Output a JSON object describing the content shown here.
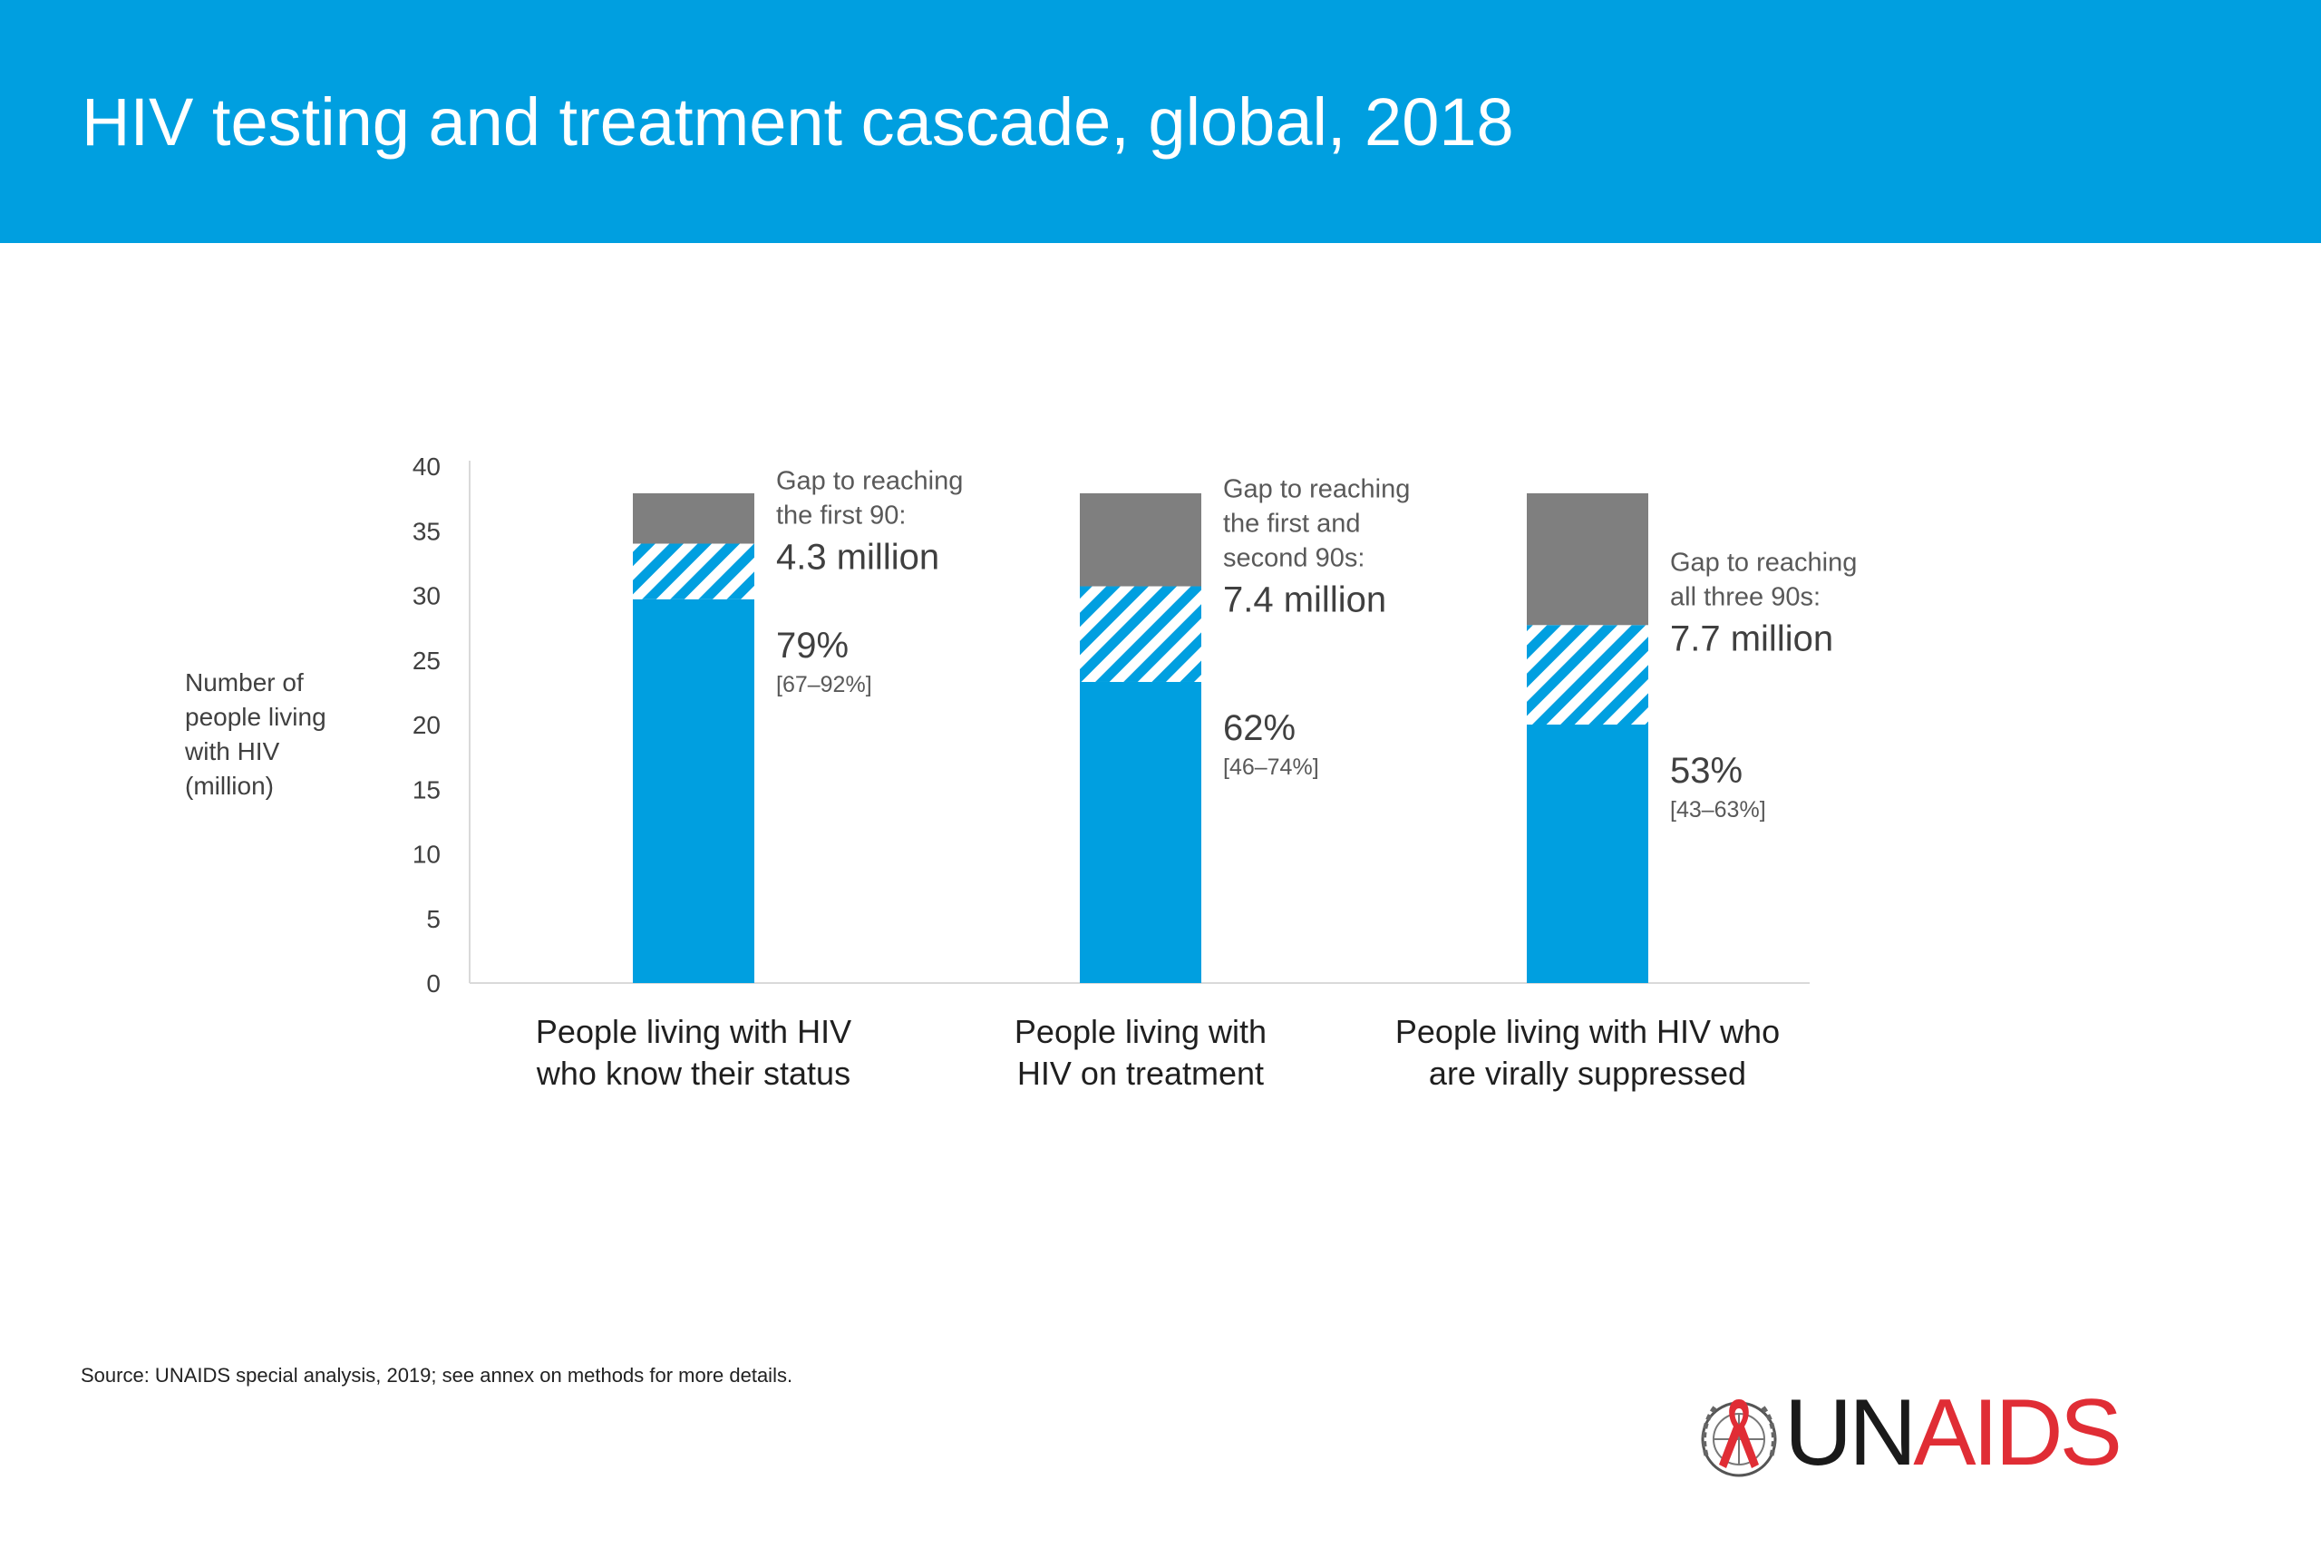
{
  "header": {
    "title": "HIV testing and treatment cascade, global, 2018"
  },
  "chart_data": {
    "type": "bar",
    "stacked": true,
    "ylabel_lines": [
      "Number of",
      "people living",
      "with HIV",
      "(million)"
    ],
    "ylim": [
      0,
      40
    ],
    "yticks": [
      0,
      5,
      10,
      15,
      20,
      25,
      30,
      35,
      40
    ],
    "grid": false,
    "categories": [
      [
        "People living with HIV",
        "who know their status"
      ],
      [
        "People living with",
        "HIV on treatment"
      ],
      [
        "People living with HIV who",
        "are virally suppressed"
      ]
    ],
    "series": [
      {
        "values": [
          29.7,
          23.3,
          20.0
        ],
        "color": "#009fe0",
        "pattern": "solid"
      },
      {
        "values": [
          4.3,
          7.4,
          7.7
        ],
        "color": "#009fe0",
        "pattern": "hatched"
      },
      {
        "values": [
          3.9,
          7.2,
          10.2
        ],
        "color": "#7f7f7f",
        "pattern": "solid"
      }
    ],
    "bars": [
      {
        "gap_label_lines": [
          "Gap to reaching",
          "the first 90:"
        ],
        "gap_value": "4.3 million",
        "percent": "79%",
        "range": "[67–92%]"
      },
      {
        "gap_label_lines": [
          "Gap to reaching",
          "the first and",
          "second 90s:"
        ],
        "gap_value": "7.4 million",
        "percent": "62%",
        "range": "[46–74%]"
      },
      {
        "gap_label_lines": [
          "Gap to reaching",
          "all three 90s:"
        ],
        "gap_value": "7.7 million",
        "percent": "53%",
        "range": "[43–63%]"
      }
    ]
  },
  "footer": {
    "source": "Source: UNAIDS special analysis, 2019; see annex on methods for more details.",
    "logo_text_un": "UN",
    "logo_text_aids": "AIDS"
  },
  "colors": {
    "header_bg": "#009fe0",
    "bar_blue": "#009fe0",
    "bar_gap_gray": "#7f7f7f",
    "logo_dark": "#1a1a1a",
    "logo_red": "#e02d35"
  }
}
